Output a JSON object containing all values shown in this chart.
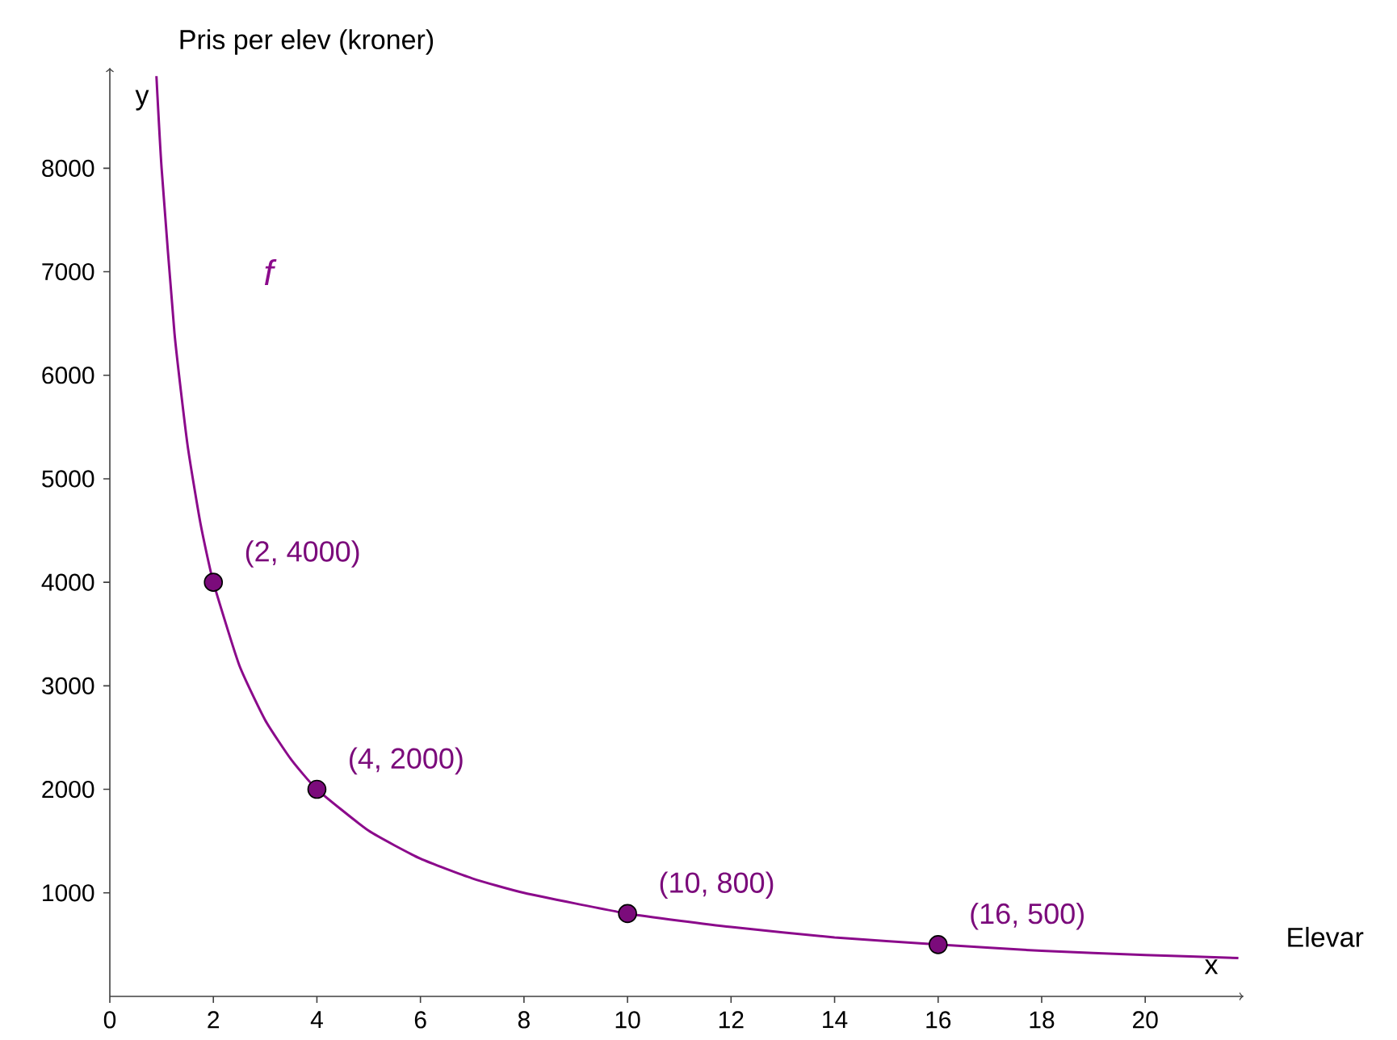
{
  "chart_data": {
    "type": "line",
    "xlabel": "Elevar",
    "ylabel": "Pris per elev (kroner)",
    "annotations": [
      "y",
      "x",
      "f"
    ],
    "xlim": [
      0,
      21.9
    ],
    "ylim": [
      0,
      8970
    ],
    "xticks": [
      0,
      2,
      4,
      6,
      8,
      10,
      12,
      14,
      16,
      18,
      20
    ],
    "yticks": [
      1000,
      2000,
      3000,
      4000,
      5000,
      6000,
      7000,
      8000
    ],
    "series": [
      {
        "color": "#8b0a8b",
        "x": [
          0.9,
          1,
          1.25,
          1.5,
          1.75,
          2,
          2.5,
          3,
          3.5,
          4,
          5,
          6,
          7,
          8,
          10,
          12,
          14,
          16,
          18,
          20,
          21.8
        ],
        "values": [
          8890,
          8000,
          6400,
          5330,
          4570,
          4000,
          3200,
          2670,
          2290,
          2000,
          1600,
          1330,
          1140,
          1000,
          800,
          670,
          570,
          500,
          440,
          400,
          370
        ]
      },
      {
        "type": "scatter",
        "color": "#7b0b7b",
        "marker": "circle",
        "x": [
          2,
          4,
          10,
          16
        ],
        "values": [
          4000,
          2000,
          800,
          500
        ],
        "value_labels": [
          "(2, 4000)",
          "(4, 2000)",
          "(10, 800)",
          "(16, 500)"
        ]
      }
    ]
  }
}
